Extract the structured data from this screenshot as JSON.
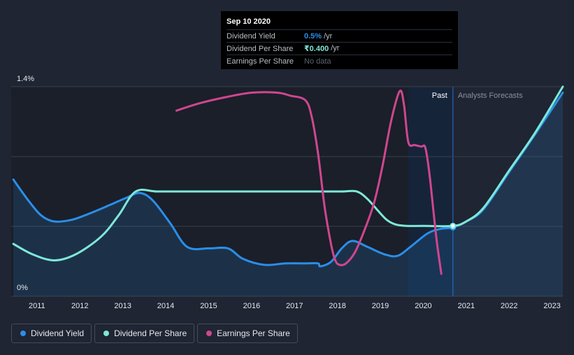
{
  "tooltip": {
    "date": "Sep 10 2020",
    "rows": [
      {
        "label": "Dividend Yield",
        "value": "0.5%",
        "unit": "/yr"
      },
      {
        "label": "Dividend Per Share",
        "value": "₹0.400",
        "unit": "/yr"
      },
      {
        "label": "Earnings Per Share",
        "value": "No data",
        "unit": ""
      }
    ]
  },
  "region_labels": {
    "past": "Past",
    "forecast": "Analysts Forecasts"
  },
  "legend": [
    {
      "label": "Dividend Yield",
      "color": "#2b8ee8"
    },
    {
      "label": "Dividend Per Share",
      "color": "#7ee8d8"
    },
    {
      "label": "Earnings Per Share",
      "color": "#d0468f"
    }
  ],
  "chart_data": {
    "type": "line",
    "xlabel": "",
    "ylabel": "",
    "y_tick_labels": [
      "1.4%",
      "0%"
    ],
    "ylim": [
      0,
      1.4
    ],
    "xlim": [
      2010.4,
      2023.25
    ],
    "x_ticks": [
      2011,
      2012,
      2013,
      2014,
      2015,
      2016,
      2017,
      2018,
      2019,
      2020,
      2021,
      2022,
      2023
    ],
    "past_end": 2020.69,
    "highlight_start": 2019.65,
    "series": [
      {
        "name": "Dividend Yield",
        "color": "#2b8ee8",
        "area": true,
        "x": [
          2010.45,
          2010.8,
          2011.1,
          2011.4,
          2011.8,
          2012.2,
          2012.7,
          2013.1,
          2013.4,
          2013.7,
          2014.1,
          2014.5,
          2015.0,
          2015.45,
          2015.8,
          2016.3,
          2016.8,
          2017.3,
          2017.55,
          2017.6,
          2017.85,
          2018.1,
          2018.35,
          2018.7,
          2019.1,
          2019.4,
          2019.7,
          2020.1,
          2020.4,
          2020.69,
          2021.0,
          2021.4,
          2022.0,
          2022.6,
          2023.25
        ],
        "y": [
          0.78,
          0.64,
          0.54,
          0.5,
          0.51,
          0.55,
          0.61,
          0.66,
          0.69,
          0.64,
          0.49,
          0.33,
          0.32,
          0.32,
          0.25,
          0.21,
          0.22,
          0.22,
          0.22,
          0.2,
          0.23,
          0.32,
          0.37,
          0.33,
          0.28,
          0.27,
          0.33,
          0.42,
          0.45,
          0.46,
          0.5,
          0.58,
          0.83,
          1.08,
          1.36
        ]
      },
      {
        "name": "Dividend Per Share",
        "color": "#7ee8d8",
        "area": false,
        "x": [
          2010.45,
          2010.9,
          2011.4,
          2011.9,
          2012.5,
          2012.9,
          2013.3,
          2013.8,
          2014.5,
          2015.5,
          2016.5,
          2017.5,
          2018.1,
          2018.45,
          2018.7,
          2018.95,
          2019.15,
          2019.35,
          2019.6,
          2020.0,
          2020.69,
          2021.0,
          2021.4,
          2022.0,
          2022.6,
          2023.25
        ],
        "y": [
          0.35,
          0.28,
          0.24,
          0.28,
          0.4,
          0.54,
          0.7,
          0.7,
          0.7,
          0.7,
          0.7,
          0.7,
          0.7,
          0.7,
          0.65,
          0.57,
          0.51,
          0.48,
          0.47,
          0.47,
          0.47,
          0.5,
          0.59,
          0.84,
          1.09,
          1.4
        ]
      },
      {
        "name": "Earnings Per Share",
        "color": "#d0468f",
        "area": false,
        "x": [
          2014.25,
          2014.8,
          2015.4,
          2016.0,
          2016.6,
          2016.9,
          2017.25,
          2017.4,
          2017.55,
          2017.7,
          2017.85,
          2017.95,
          2018.05,
          2018.2,
          2018.4,
          2018.6,
          2018.85,
          2019.05,
          2019.25,
          2019.45,
          2019.55,
          2019.65,
          2019.8,
          2019.95,
          2020.05,
          2020.15,
          2020.3,
          2020.42
        ],
        "y": [
          1.24,
          1.29,
          1.33,
          1.36,
          1.36,
          1.34,
          1.31,
          1.2,
          0.95,
          0.6,
          0.35,
          0.24,
          0.21,
          0.22,
          0.29,
          0.42,
          0.62,
          0.87,
          1.17,
          1.37,
          1.28,
          1.03,
          1.01,
          1.0,
          0.99,
          0.8,
          0.4,
          0.15
        ]
      }
    ]
  }
}
